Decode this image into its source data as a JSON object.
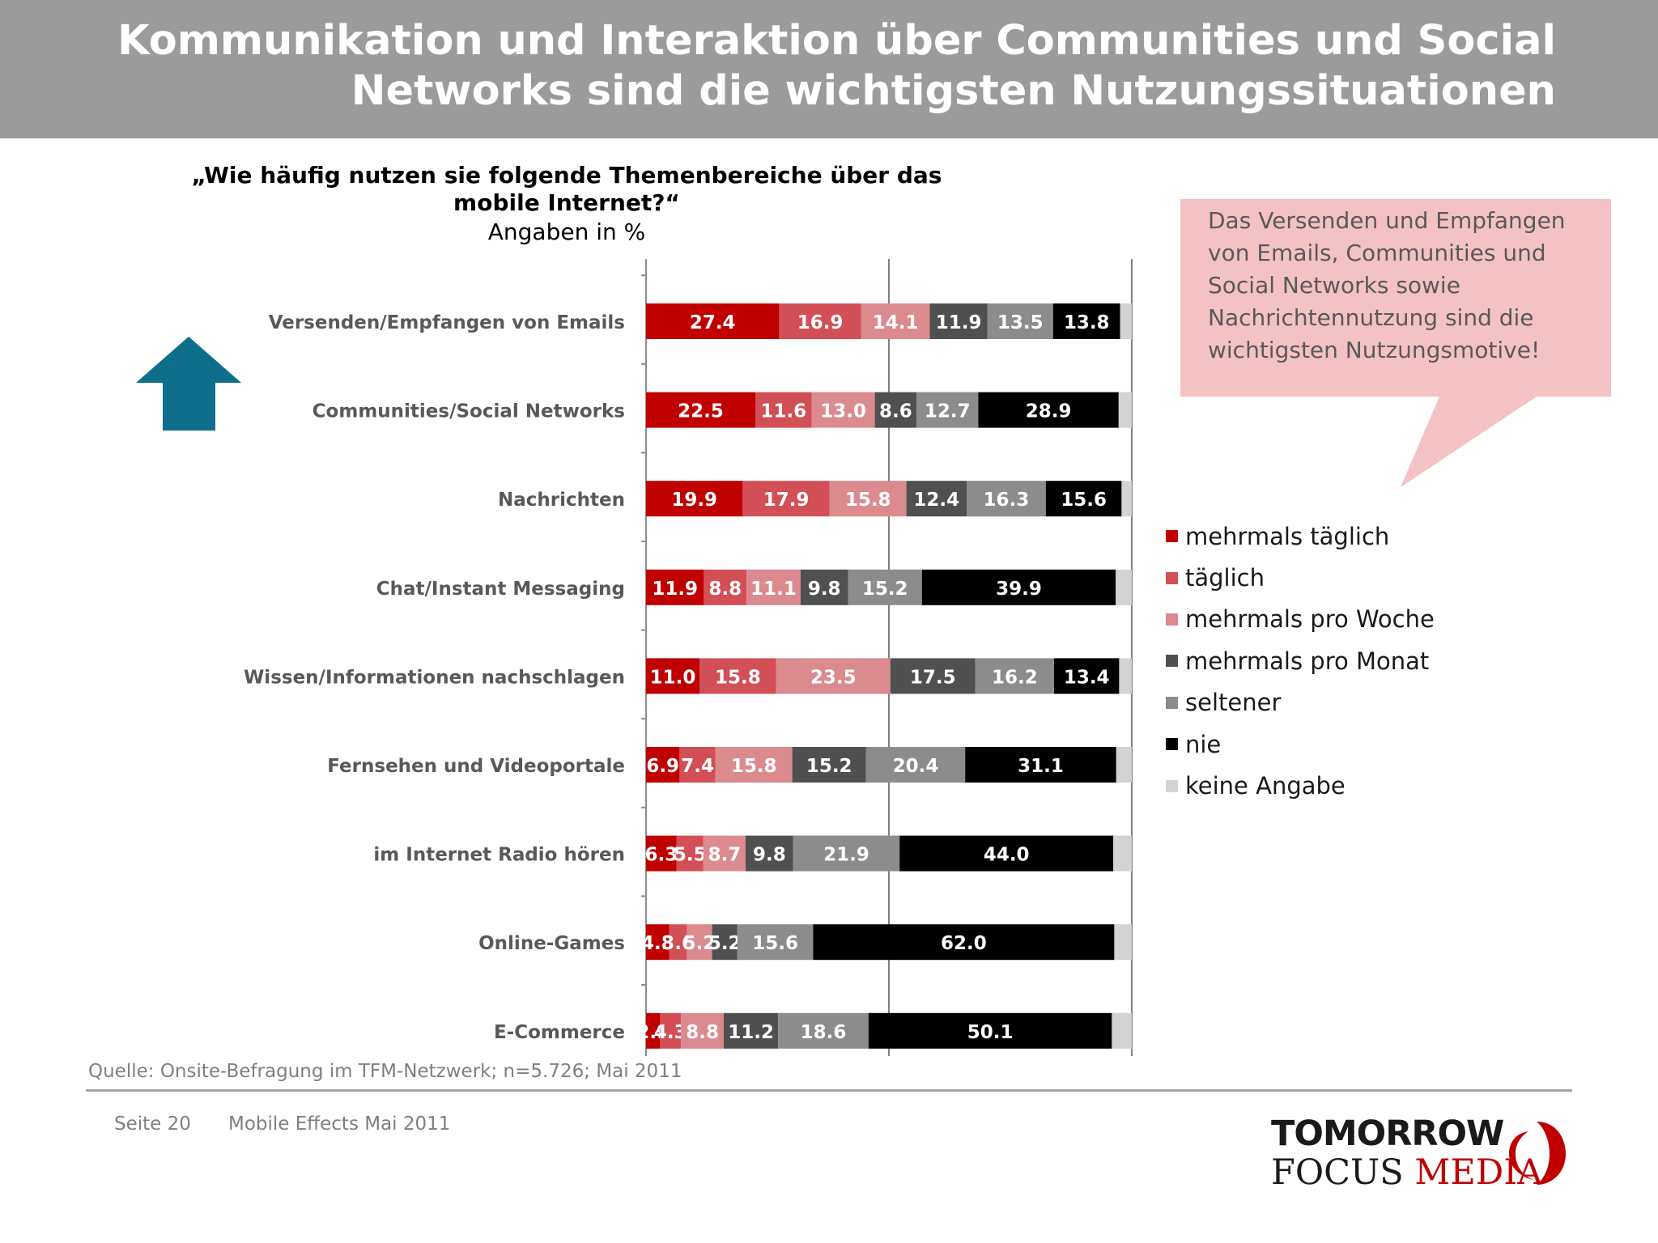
{
  "header": {
    "title_line1": "Kommunikation und Interaktion über Communities und Social",
    "title_line2": "Networks sind die wichtigsten Nutzungssituationen"
  },
  "question": {
    "line1": "„Wie häufig nutzen sie folgende Themenbereiche über das",
    "line2": "mobile Internet?“",
    "unit": "Angaben in %"
  },
  "callout": {
    "text": "Das Versenden und Empfangen von Emails, Communities und Social Networks sowie Nachrichtennutzung sind die wichtigsten Nutzungsmotive!"
  },
  "source": "Quelle: Onsite-Befragung im TFM-Netzwerk; n=5.726; Mai 2011",
  "footer": {
    "page": "Seite 20",
    "note": "Mobile Effects Mai 2011"
  },
  "logo": {
    "line1": "TOMORROW",
    "line2a": "FOCUS",
    "line2b": "MEDIA"
  },
  "icons": {
    "arrow": "up-arrow-icon"
  },
  "colors": {
    "header_bg": "#9b9b9b",
    "callout_bg": "#f4c2c4",
    "arrow": "#0e6e8c"
  },
  "chart_data": {
    "type": "bar",
    "orientation": "horizontal",
    "stacked": true,
    "categories": [
      "Versenden/Empfangen von Emails",
      "Communities/Social Networks",
      "Nachrichten",
      "Chat/Instant Messaging",
      "Wissen/Informationen nachschlagen",
      "Fernsehen und Videoportale",
      "im Internet Radio hören",
      "Online-Games",
      "E-Commerce"
    ],
    "series": [
      {
        "name": "mehrmals täglich",
        "color": "#c00000",
        "values": [
          27.4,
          22.5,
          19.9,
          11.9,
          11.0,
          6.9,
          6.3,
          4.8,
          2.9
        ]
      },
      {
        "name": "täglich",
        "color": "#d24f55",
        "values": [
          16.9,
          11.6,
          17.9,
          8.8,
          15.8,
          7.4,
          5.5,
          3.6,
          4.3
        ]
      },
      {
        "name": "mehrmals pro Woche",
        "color": "#db8a8e",
        "values": [
          14.1,
          13.0,
          15.8,
          11.1,
          23.5,
          15.8,
          8.7,
          5.2,
          8.8
        ]
      },
      {
        "name": "mehrmals pro Monat",
        "color": "#505050",
        "values": [
          11.9,
          8.6,
          12.4,
          9.8,
          17.5,
          15.2,
          9.8,
          5.2,
          11.2
        ]
      },
      {
        "name": "seltener",
        "color": "#8c8c8c",
        "values": [
          13.5,
          12.7,
          16.3,
          15.2,
          16.2,
          20.4,
          21.9,
          15.6,
          18.6
        ]
      },
      {
        "name": "nie",
        "color": "#000000",
        "values": [
          13.8,
          28.9,
          15.6,
          39.9,
          13.4,
          31.1,
          44.0,
          62.0,
          50.1
        ]
      },
      {
        "name": "keine Angabe",
        "color": "#d3d3d3",
        "values": [
          2.4,
          2.7,
          2.1,
          3.3,
          2.6,
          3.2,
          3.8,
          3.6,
          4.1
        ]
      }
    ],
    "data_labels": [
      [
        "27.4",
        "16.9",
        "14.1",
        "11.9",
        "13.5",
        "13.8",
        ""
      ],
      [
        "22.5",
        "11.6",
        "13.0",
        "8.6",
        "12.7",
        "28.9",
        ""
      ],
      [
        "19.9",
        "17.9",
        "15.8",
        "12.4",
        "16.3",
        "15.6",
        ""
      ],
      [
        "11.9",
        "8.8",
        "11.1",
        "9.8",
        "15.2",
        "39.9",
        ""
      ],
      [
        "11.0",
        "15.8",
        "23.5",
        "17.5",
        "16.2",
        "13.4",
        ""
      ],
      [
        "6.9",
        "7.4",
        "15.8",
        "15.2",
        "20.4",
        "31.1",
        ""
      ],
      [
        "6.3",
        "5.5",
        "8.7",
        "9.8",
        "21.9",
        "44.0",
        ""
      ],
      [
        "4.8",
        "3.6",
        "5.2",
        "5.2",
        "15.6",
        "62.0",
        ""
      ],
      [
        "2.9",
        "4.3",
        "8.8",
        "11.2",
        "18.6",
        "50.1",
        ""
      ]
    ],
    "xlim": [
      0,
      100
    ],
    "grid": true,
    "legend": "right"
  }
}
